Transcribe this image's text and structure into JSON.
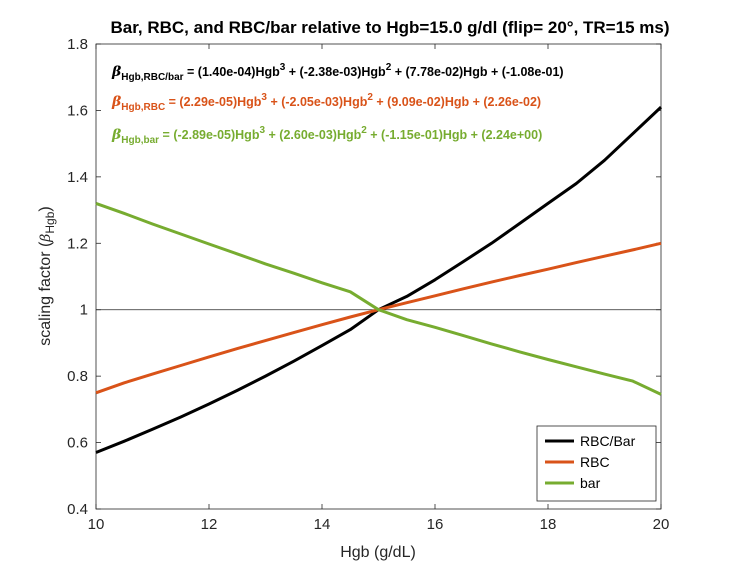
{
  "chart_data": {
    "type": "line",
    "title": "Bar, RBC, and RBC/bar relative to Hgb=15.0 g/dl (flip= 20°, TR=15 ms)",
    "xlabel": "Hgb (g/dL)",
    "ylabel_main": "scaling factor (",
    "ylabel_beta": "β",
    "ylabel_sub": "Hgb",
    "ylabel_close": ")",
    "xlim": [
      10,
      20
    ],
    "ylim": [
      0.4,
      1.8
    ],
    "xticks": [
      "10",
      "12",
      "14",
      "16",
      "18",
      "20"
    ],
    "xtick_values": [
      10,
      12,
      14,
      16,
      18,
      20
    ],
    "yticks": [
      "0.4",
      "0.6",
      "0.8",
      "1",
      "1.2",
      "1.4",
      "1.6",
      "1.8"
    ],
    "ytick_values": [
      0.4,
      0.6,
      0.8,
      1.0,
      1.2,
      1.4,
      1.6,
      1.8
    ],
    "reference_line": 1.0,
    "x": [
      10,
      10.5,
      11,
      11.5,
      12,
      12.5,
      13,
      13.5,
      14,
      14.5,
      15,
      15.5,
      16,
      16.5,
      17,
      17.5,
      18,
      18.5,
      19,
      19.5,
      20
    ],
    "series": [
      {
        "name": "RBC/Bar",
        "color": "#000000",
        "values": [
          0.57,
          0.604,
          0.64,
          0.677,
          0.716,
          0.757,
          0.8,
          0.845,
          0.892,
          0.94,
          1.0,
          1.04,
          1.09,
          1.145,
          1.2,
          1.26,
          1.32,
          1.38,
          1.45,
          1.53,
          1.61
        ]
      },
      {
        "name": "RBC",
        "color": "#D95319",
        "values": [
          0.75,
          0.78,
          0.806,
          0.832,
          0.858,
          0.883,
          0.907,
          0.931,
          0.955,
          0.978,
          1.0,
          1.021,
          1.042,
          1.063,
          1.083,
          1.103,
          1.122,
          1.142,
          1.161,
          1.18,
          1.2
        ]
      },
      {
        "name": "bar",
        "color": "#77AC30",
        "values": [
          1.32,
          1.29,
          1.258,
          1.228,
          1.198,
          1.168,
          1.138,
          1.11,
          1.081,
          1.054,
          1.0,
          0.97,
          0.947,
          0.922,
          0.897,
          0.873,
          0.85,
          0.828,
          0.806,
          0.785,
          0.745
        ]
      }
    ],
    "equations": [
      {
        "color": "#000000",
        "beta": "β",
        "sub": "Hgb,RBC/bar",
        "p1": " = (1.40e-04)Hgb",
        "sup1": "3",
        "p2": " + (-2.38e-03)Hgb",
        "sup2": "2",
        "p3": " + (7.78e-02)Hgb + (-1.08e-01)"
      },
      {
        "color": "#D95319",
        "beta": "β",
        "sub": "Hgb,RBC",
        "p1": " = (2.29e-05)Hgb",
        "sup1": "3",
        "p2": " + (-2.05e-03)Hgb",
        "sup2": "2",
        "p3": " + (9.09e-02)Hgb + (2.26e-02)"
      },
      {
        "color": "#77AC30",
        "beta": "β",
        "sub": "Hgb,bar",
        "p1": " = (-2.89e-05)Hgb",
        "sup1": "3",
        "p2": " + (2.60e-03)Hgb",
        "sup2": "2",
        "p3": " + (-1.15e-01)Hgb + (2.24e+00)"
      }
    ],
    "legend": {
      "location": "bottom-right",
      "entries": [
        "RBC/Bar",
        "RBC",
        "bar"
      ]
    }
  }
}
